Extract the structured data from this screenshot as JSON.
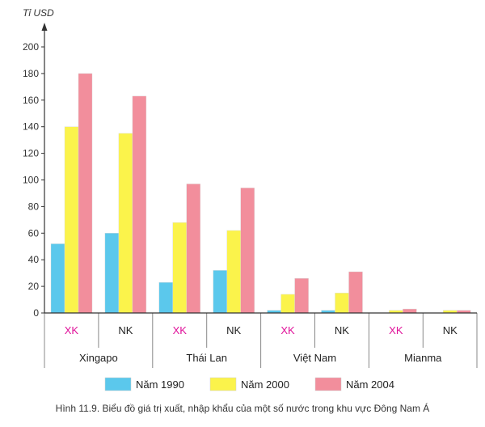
{
  "caption": "Hình 11.9. Biểu đồ giá trị xuất, nhập khẩu của một số nước trong khu vực Đông Nam Á",
  "chart_data": {
    "type": "bar",
    "ylabel": "Tỉ USD",
    "ylim": [
      0,
      200
    ],
    "yticks": [
      0,
      20,
      40,
      60,
      80,
      100,
      120,
      140,
      160,
      180,
      200
    ],
    "countries": [
      {
        "name": "Xingapo",
        "groups": [
          {
            "label": "XK",
            "values": [
              52,
              140,
              180
            ]
          },
          {
            "label": "NK",
            "values": [
              60,
              135,
              163
            ]
          }
        ]
      },
      {
        "name": "Thái Lan",
        "groups": [
          {
            "label": "XK",
            "values": [
              23,
              68,
              97
            ]
          },
          {
            "label": "NK",
            "values": [
              32,
              62,
              94
            ]
          }
        ]
      },
      {
        "name": "Việt Nam",
        "groups": [
          {
            "label": "XK",
            "values": [
              2,
              14,
              26
            ]
          },
          {
            "label": "NK",
            "values": [
              2,
              15,
              31
            ]
          }
        ]
      },
      {
        "name": "Mianma",
        "groups": [
          {
            "label": "XK",
            "values": [
              0,
              2,
              3
            ]
          },
          {
            "label": "NK",
            "values": [
              0,
              2,
              2
            ]
          }
        ]
      }
    ],
    "series": [
      {
        "name": "Năm 1990",
        "color": "#5bc8ec"
      },
      {
        "name": "Năm 2000",
        "color": "#fbf34b"
      },
      {
        "name": "Năm 2004",
        "color": "#f28e9c"
      }
    ],
    "label_colors": {
      "XK": "#e0129a",
      "NK": "#222222"
    },
    "legend_position": "bottom"
  }
}
